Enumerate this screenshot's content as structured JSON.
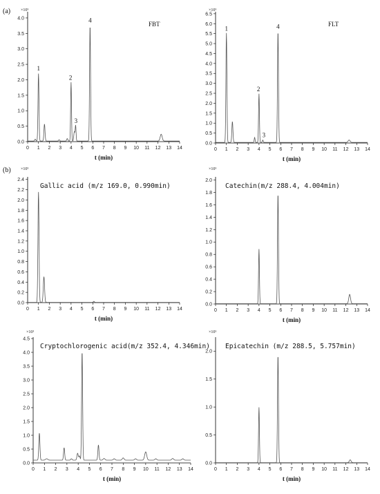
{
  "figure_labels": {
    "a": "(a)",
    "b": "(b)"
  },
  "chart_data": [
    {
      "type": "line",
      "title": "FBT",
      "multiplier": "×10⁵",
      "xlabel": "t (min)",
      "xlim": [
        0,
        14
      ],
      "ylim": [
        0,
        4.2
      ],
      "xticks": [
        0,
        1,
        2,
        3,
        4,
        5,
        6,
        7,
        8,
        9,
        10,
        11,
        12,
        13,
        14
      ],
      "yticks": [
        "0.0",
        "0.5",
        "1.0",
        "1.5",
        "2.0",
        "2.5",
        "3.0",
        "3.5",
        "4.0"
      ],
      "baseline": 0.02,
      "peaks": [
        {
          "t": 0.7,
          "h": 0.06,
          "w": 0.05
        },
        {
          "t": 1.0,
          "h": 2.18,
          "w": 0.045
        },
        {
          "t": 1.55,
          "h": 0.55,
          "w": 0.05
        },
        {
          "t": 2.9,
          "h": 0.04,
          "w": 0.05
        },
        {
          "t": 3.65,
          "h": 0.08,
          "w": 0.05
        },
        {
          "t": 4.0,
          "h": 1.9,
          "w": 0.04
        },
        {
          "t": 4.3,
          "h": 0.3,
          "w": 0.05
        },
        {
          "t": 4.42,
          "h": 0.5,
          "w": 0.04
        },
        {
          "t": 5.75,
          "h": 3.75,
          "w": 0.045
        },
        {
          "t": 12.3,
          "h": 0.22,
          "w": 0.09
        }
      ],
      "peak_labels": [
        {
          "text": "1",
          "t": 1.0,
          "y": 2.3
        },
        {
          "text": "2",
          "t": 3.95,
          "y": 2.0
        },
        {
          "text": "3",
          "t": 4.45,
          "y": 0.6
        },
        {
          "text": "4",
          "t": 5.75,
          "y": 3.85
        }
      ]
    },
    {
      "type": "line",
      "title": "FLT",
      "multiplier": "×10⁵",
      "xlabel": "t (min)",
      "xlim": [
        0,
        14
      ],
      "ylim": [
        0,
        6.6
      ],
      "xticks": [
        0,
        1,
        2,
        3,
        4,
        5,
        6,
        7,
        8,
        9,
        10,
        11,
        12,
        13,
        14
      ],
      "yticks": [
        "0.0",
        "0.5",
        "1.0",
        "1.5",
        "2.0",
        "2.5",
        "3.0",
        "3.5",
        "4.0",
        "4.5",
        "5.0",
        "5.5",
        "6.0",
        "6.5"
      ],
      "baseline": 0.03,
      "peaks": [
        {
          "t": 1.0,
          "h": 5.5,
          "w": 0.045
        },
        {
          "t": 1.55,
          "h": 1.05,
          "w": 0.05
        },
        {
          "t": 3.6,
          "h": 0.25,
          "w": 0.04
        },
        {
          "t": 4.0,
          "h": 2.45,
          "w": 0.04
        },
        {
          "t": 4.35,
          "h": 0.12,
          "w": 0.04
        },
        {
          "t": 5.75,
          "h": 5.6,
          "w": 0.045
        },
        {
          "t": 12.3,
          "h": 0.12,
          "w": 0.09
        }
      ],
      "peak_labels": [
        {
          "text": "1",
          "t": 1.0,
          "y": 5.65
        },
        {
          "text": "2",
          "t": 3.95,
          "y": 2.6
        },
        {
          "text": "3",
          "t": 4.45,
          "y": 0.3
        },
        {
          "text": "4",
          "t": 5.75,
          "y": 5.75
        }
      ]
    },
    {
      "type": "line",
      "title": "Gallic acid (m/z 169.0, 0.990min)",
      "multiplier": "×10⁵",
      "xlabel": "t (min)",
      "xlim": [
        0,
        14
      ],
      "ylim": [
        0,
        2.45
      ],
      "xticks": [
        0,
        1,
        2,
        3,
        4,
        5,
        6,
        7,
        8,
        9,
        10,
        11,
        12,
        13,
        14
      ],
      "yticks": [
        "0.0",
        "0.2",
        "0.4",
        "0.6",
        "0.8",
        "1.0",
        "1.2",
        "1.4",
        "1.6",
        "1.8",
        "2.0",
        "2.2",
        "2.4"
      ],
      "baseline": 0.005,
      "peaks": [
        {
          "t": 1.0,
          "h": 2.15,
          "w": 0.05
        },
        {
          "t": 1.5,
          "h": 0.5,
          "w": 0.06
        },
        {
          "t": 6.1,
          "h": 0.02,
          "w": 0.05
        }
      ],
      "peak_labels": []
    },
    {
      "type": "line",
      "title": "Catechin(m/z 288.4, 4.004min)",
      "multiplier": "×10⁵",
      "xlabel": "t (min)",
      "xlim": [
        0,
        14
      ],
      "ylim": [
        0,
        2.05
      ],
      "xticks": [
        0,
        1,
        2,
        3,
        4,
        5,
        6,
        7,
        8,
        9,
        10,
        11,
        12,
        13,
        14
      ],
      "yticks": [
        "0.0",
        "0.2",
        "0.4",
        "0.6",
        "0.8",
        "1.0",
        "1.2",
        "1.4",
        "1.6",
        "1.8",
        "2.0"
      ],
      "baseline": 0.005,
      "peaks": [
        {
          "t": 4.0,
          "h": 0.88,
          "w": 0.04
        },
        {
          "t": 5.75,
          "h": 1.78,
          "w": 0.045
        },
        {
          "t": 12.35,
          "h": 0.15,
          "w": 0.08
        }
      ],
      "peak_labels": []
    },
    {
      "type": "line",
      "title": "Cryptochlorogenic acid(m/z 352.4, 4.346min)",
      "multiplier": "×10³",
      "xlabel": "t (min)",
      "xlim": [
        0,
        14
      ],
      "ylim": [
        0,
        4.55
      ],
      "xticks": [
        0,
        1,
        2,
        3,
        4,
        5,
        6,
        7,
        8,
        9,
        10,
        11,
        12,
        13,
        14
      ],
      "yticks": [
        "0.0",
        "0.5",
        "1.0",
        "1.5",
        "2.0",
        "2.5",
        "3.0",
        "3.5",
        "4.0",
        "4.5"
      ],
      "baseline": 0.1,
      "peaks": [
        {
          "t": 0.55,
          "h": 0.98,
          "w": 0.05
        },
        {
          "t": 1.2,
          "h": 0.05,
          "w": 0.1
        },
        {
          "t": 2.75,
          "h": 0.45,
          "w": 0.05
        },
        {
          "t": 3.4,
          "h": 0.05,
          "w": 0.06
        },
        {
          "t": 3.95,
          "h": 0.25,
          "w": 0.06
        },
        {
          "t": 4.12,
          "h": 0.15,
          "w": 0.05
        },
        {
          "t": 4.35,
          "h": 3.95,
          "w": 0.045
        },
        {
          "t": 5.8,
          "h": 0.55,
          "w": 0.05
        },
        {
          "t": 6.3,
          "h": 0.06,
          "w": 0.08
        },
        {
          "t": 7.2,
          "h": 0.05,
          "w": 0.08
        },
        {
          "t": 8.0,
          "h": 0.08,
          "w": 0.08
        },
        {
          "t": 9.1,
          "h": 0.05,
          "w": 0.08
        },
        {
          "t": 10.0,
          "h": 0.3,
          "w": 0.09
        },
        {
          "t": 10.9,
          "h": 0.05,
          "w": 0.08
        },
        {
          "t": 12.4,
          "h": 0.06,
          "w": 0.08
        },
        {
          "t": 13.3,
          "h": 0.05,
          "w": 0.08
        }
      ],
      "peak_labels": []
    },
    {
      "type": "line",
      "title": "Epicatechin (m/z 288.5, 5.757min)",
      "multiplier": "×10⁵",
      "xlabel": "t (min)",
      "xlim": [
        0,
        14
      ],
      "ylim": [
        0,
        2.25
      ],
      "xticks": [
        0,
        1,
        2,
        3,
        4,
        5,
        6,
        7,
        8,
        9,
        10,
        11,
        12,
        13,
        14
      ],
      "yticks": [
        "0.0",
        "0.5",
        "1.0",
        "1.5",
        "2.0"
      ],
      "baseline": 0.005,
      "peaks": [
        {
          "t": 4.0,
          "h": 0.99,
          "w": 0.04
        },
        {
          "t": 5.75,
          "h": 1.93,
          "w": 0.045
        },
        {
          "t": 12.4,
          "h": 0.05,
          "w": 0.08
        }
      ],
      "peak_labels": []
    }
  ]
}
